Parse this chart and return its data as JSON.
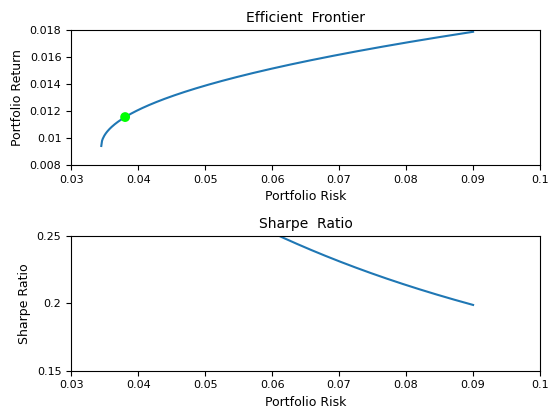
{
  "title1": "Efficient  Frontier",
  "title2": "Sharpe  Ratio",
  "xlabel1": "Portfolio Risk",
  "ylabel1": "Portfolio Return",
  "xlabel2": "Portfolio Risk",
  "ylabel2": "Sharpe Ratio",
  "xlim": [
    0.03,
    0.1
  ],
  "ylim1": [
    0.008,
    0.018
  ],
  "ylim2": [
    0.15,
    0.25
  ],
  "line_color": "#1f77b4",
  "scatter_color": "#00ff00",
  "scatter_size": 50,
  "line_width": 1.5,
  "xticks": [
    0.03,
    0.04,
    0.05,
    0.06,
    0.07,
    0.08,
    0.09,
    0.1
  ],
  "yticks1": [
    0.008,
    0.01,
    0.012,
    0.014,
    0.016,
    0.018
  ],
  "yticks2": [
    0.15,
    0.2,
    0.25
  ],
  "background_color": "#ffffff",
  "risk_min": 0.0345,
  "risk_max": 0.09,
  "ret_at_min": 0.0094,
  "ret_at_max": 0.0179,
  "rf_rate": 0.0,
  "figsize": [
    5.6,
    4.2
  ],
  "dpi": 100
}
